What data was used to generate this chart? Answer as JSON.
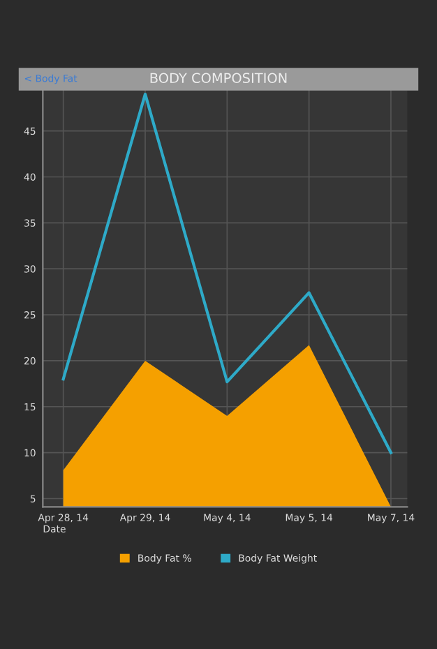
{
  "chart_data": {
    "type": "line",
    "title": "BODY COMPOSITION",
    "xlabel": "Date",
    "annotations": [
      "< Body Fat"
    ],
    "categories": [
      "Apr 28, 14",
      "Apr 29, 14",
      "May 4, 14",
      "May 5, 14",
      "May 7, 14"
    ],
    "series": [
      {
        "name": "Body Fat %",
        "type": "area",
        "color": "#f5a000",
        "values": [
          8.1,
          20,
          14,
          21.7,
          4.1
        ]
      },
      {
        "name": "Body Fat Weight",
        "color": "#2eaac8",
        "values": [
          18,
          49,
          17.7,
          27.4,
          10
        ]
      }
    ],
    "ylim": [
      4.1,
      49.5
    ],
    "yticks": [
      5,
      10,
      15,
      20,
      25,
      30,
      35,
      40,
      45
    ],
    "grid": true,
    "legend": "bottom",
    "marker": "none"
  }
}
